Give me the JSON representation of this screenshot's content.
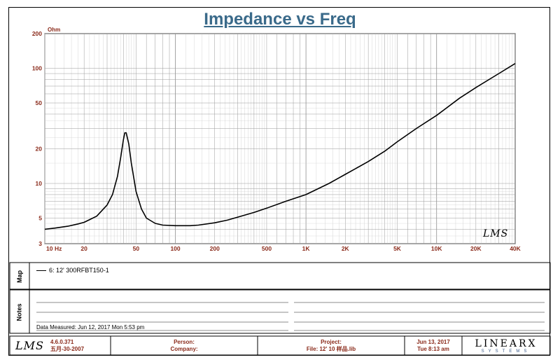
{
  "chart_data": {
    "type": "line",
    "title": "Impedance vs Freq",
    "ylabel": "Ohm",
    "xunit": "Hz",
    "xscale": "log",
    "yscale": "log",
    "xlim": [
      10,
      40000
    ],
    "ylim": [
      3,
      200
    ],
    "xticks": [
      {
        "value": 10,
        "label": "10"
      },
      {
        "value": 20,
        "label": "20"
      },
      {
        "value": 50,
        "label": "50"
      },
      {
        "value": 100,
        "label": "100"
      },
      {
        "value": 200,
        "label": "200"
      },
      {
        "value": 500,
        "label": "500"
      },
      {
        "value": 1000,
        "label": "1K"
      },
      {
        "value": 2000,
        "label": "2K"
      },
      {
        "value": 5000,
        "label": "5K"
      },
      {
        "value": 10000,
        "label": "10K"
      },
      {
        "value": 20000,
        "label": "20K"
      },
      {
        "value": 40000,
        "label": "40K"
      }
    ],
    "yticks": [
      {
        "value": 3,
        "label": "3"
      },
      {
        "value": 5,
        "label": "5"
      },
      {
        "value": 10,
        "label": "10"
      },
      {
        "value": 20,
        "label": "20"
      },
      {
        "value": 50,
        "label": "50"
      },
      {
        "value": 100,
        "label": "100"
      },
      {
        "value": 200,
        "label": "200"
      }
    ],
    "grid": true,
    "series": [
      {
        "name": "6: 12' 300RFBT150-1",
        "x": [
          10,
          12,
          15,
          18,
          20,
          25,
          30,
          33,
          36,
          38,
          40,
          41,
          42,
          44,
          46,
          50,
          55,
          60,
          70,
          80,
          100,
          130,
          150,
          200,
          250,
          300,
          400,
          500,
          700,
          1000,
          1500,
          2000,
          3000,
          4000,
          5000,
          7000,
          10000,
          15000,
          20000,
          30000,
          40000
        ],
        "values": [
          4.0,
          4.1,
          4.25,
          4.45,
          4.6,
          5.2,
          6.5,
          8.0,
          11.5,
          16.5,
          24.0,
          27.5,
          27.5,
          22.0,
          15.0,
          8.5,
          6.0,
          5.0,
          4.5,
          4.35,
          4.3,
          4.3,
          4.35,
          4.55,
          4.8,
          5.1,
          5.6,
          6.1,
          7.0,
          8.0,
          10.0,
          12.0,
          15.5,
          19.0,
          23.0,
          30.0,
          39.0,
          55.0,
          68.0,
          90.0,
          110.0
        ]
      }
    ]
  },
  "panels": {
    "map_label": "Map",
    "notes_label": "Notes",
    "map_entry": "6: 12' 300RFBT150-1",
    "data_measured": "Data Measured: Jun 12, 2017  Mon  5:53 pm"
  },
  "footer": {
    "logo": "LMS",
    "version": "4.6.0.371",
    "build_date": "五月-30-2007",
    "person_label": "Person:",
    "company_label": "Company:",
    "project_label": "Project:",
    "file_label": "File: 12' 10  样品.lib",
    "date": "Jun 13, 2017",
    "day_time": "Tue  8:13 am",
    "brand": "LINEARX",
    "brand_sub": "SYSTEMS"
  },
  "colors": {
    "title": "#3a6a8a",
    "tick_labels": "#8a2a1a",
    "grid": "#9a9a9a",
    "curve": "#000000"
  }
}
